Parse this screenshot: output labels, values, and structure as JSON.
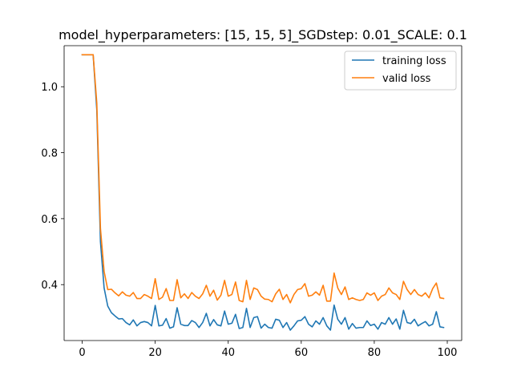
{
  "chart_data": {
    "type": "line",
    "title": "model_hyperparameters: [15, 15, 5]_SGDstep: 0.01_SCALE: 0.1",
    "xlabel": "",
    "ylabel": "",
    "xlim": [
      -4.95,
      103.95
    ],
    "ylim": [
      0.2305,
      1.1245
    ],
    "xticks": [
      0,
      20,
      40,
      60,
      80,
      100
    ],
    "yticks": [
      0.4,
      0.6,
      0.8,
      1.0
    ],
    "xtick_labels": [
      "0",
      "20",
      "40",
      "60",
      "80",
      "100"
    ],
    "ytick_labels": [
      "0.4",
      "0.6",
      "0.8",
      "1.0"
    ],
    "grid": false,
    "legend_position": "top-right",
    "x": [
      0,
      1,
      2,
      3,
      4,
      5,
      6,
      7,
      8,
      9,
      10,
      11,
      12,
      13,
      14,
      15,
      16,
      17,
      18,
      19,
      20,
      21,
      22,
      23,
      24,
      25,
      26,
      27,
      28,
      29,
      30,
      31,
      32,
      33,
      34,
      35,
      36,
      37,
      38,
      39,
      40,
      41,
      42,
      43,
      44,
      45,
      46,
      47,
      48,
      49,
      50,
      51,
      52,
      53,
      54,
      55,
      56,
      57,
      58,
      59,
      60,
      61,
      62,
      63,
      64,
      65,
      66,
      67,
      68,
      69,
      70,
      71,
      72,
      73,
      74,
      75,
      76,
      77,
      78,
      79,
      80,
      81,
      82,
      83,
      84,
      85,
      86,
      87,
      88,
      89,
      90,
      91,
      92,
      93,
      94,
      95,
      96,
      97,
      98,
      99
    ],
    "series": [
      {
        "name": "training loss",
        "color": "#1f77b4",
        "values": [
          1.097,
          1.097,
          1.097,
          1.097,
          0.93,
          0.53,
          0.39,
          0.335,
          0.315,
          0.305,
          0.296,
          0.297,
          0.285,
          0.278,
          0.293,
          0.275,
          0.285,
          0.288,
          0.285,
          0.275,
          0.337,
          0.275,
          0.277,
          0.297,
          0.268,
          0.272,
          0.33,
          0.28,
          0.276,
          0.276,
          0.291,
          0.285,
          0.27,
          0.285,
          0.313,
          0.275,
          0.294,
          0.278,
          0.275,
          0.32,
          0.28,
          0.283,
          0.31,
          0.267,
          0.27,
          0.328,
          0.27,
          0.3,
          0.303,
          0.268,
          0.28,
          0.27,
          0.268,
          0.295,
          0.292,
          0.27,
          0.285,
          0.262,
          0.275,
          0.29,
          0.292,
          0.303,
          0.28,
          0.272,
          0.29,
          0.28,
          0.3,
          0.275,
          0.262,
          0.338,
          0.295,
          0.28,
          0.3,
          0.265,
          0.282,
          0.268,
          0.27,
          0.27,
          0.29,
          0.276,
          0.28,
          0.265,
          0.285,
          0.28,
          0.3,
          0.28,
          0.296,
          0.265,
          0.322,
          0.285,
          0.282,
          0.295,
          0.275,
          0.282,
          0.288,
          0.275,
          0.28,
          0.318,
          0.272,
          0.27
        ]
      },
      {
        "name": "valid loss",
        "color": "#ff7f0e",
        "values": [
          1.097,
          1.097,
          1.097,
          1.097,
          0.95,
          0.57,
          0.44,
          0.385,
          0.386,
          0.375,
          0.366,
          0.378,
          0.368,
          0.365,
          0.376,
          0.358,
          0.358,
          0.37,
          0.365,
          0.358,
          0.418,
          0.355,
          0.362,
          0.388,
          0.352,
          0.352,
          0.415,
          0.36,
          0.372,
          0.358,
          0.376,
          0.365,
          0.358,
          0.372,
          0.398,
          0.365,
          0.383,
          0.353,
          0.368,
          0.413,
          0.365,
          0.37,
          0.408,
          0.352,
          0.348,
          0.413,
          0.355,
          0.39,
          0.385,
          0.365,
          0.356,
          0.355,
          0.348,
          0.372,
          0.386,
          0.355,
          0.37,
          0.345,
          0.37,
          0.385,
          0.388,
          0.403,
          0.365,
          0.368,
          0.378,
          0.368,
          0.398,
          0.35,
          0.35,
          0.435,
          0.39,
          0.37,
          0.393,
          0.355,
          0.36,
          0.355,
          0.352,
          0.355,
          0.375,
          0.368,
          0.375,
          0.352,
          0.365,
          0.37,
          0.39,
          0.375,
          0.37,
          0.355,
          0.41,
          0.385,
          0.37,
          0.385,
          0.37,
          0.365,
          0.375,
          0.36,
          0.388,
          0.405,
          0.36,
          0.358
        ]
      }
    ]
  }
}
